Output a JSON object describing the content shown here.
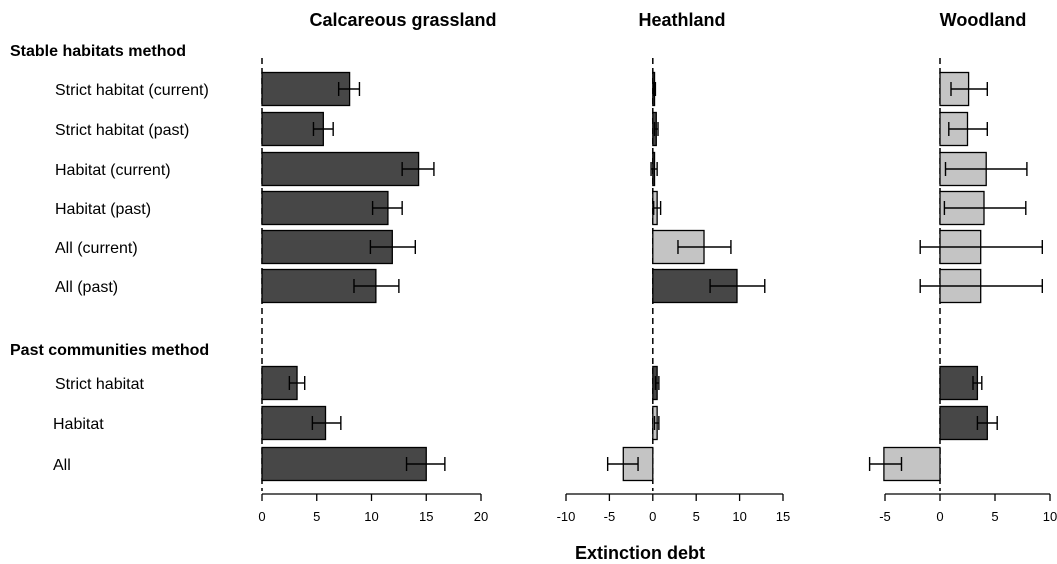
{
  "chart_data": {
    "type": "bar",
    "orientation": "horizontal",
    "xlabel": "Extinction debt",
    "colors": {
      "significant": "#474747",
      "nonsignificant": "#c4c4c4"
    },
    "sections": [
      {
        "title": "Stable habitats method",
        "rows": [
          "Strict habitat (current)",
          "Strict habitat (past)",
          "Habitat (current)",
          "Habitat (past)",
          "All (current)",
          "All (past)"
        ]
      },
      {
        "title": "Past communities method",
        "rows": [
          "Strict habitat",
          "Habitat",
          "All"
        ]
      }
    ],
    "panels": [
      {
        "title": "Calcareous grassland",
        "xlim": [
          0,
          20
        ],
        "ticks": [
          "0",
          "5",
          "10",
          "15",
          "20"
        ],
        "bars": [
          {
            "value": 8.0,
            "lo": 7.0,
            "hi": 8.9,
            "fill": "significant"
          },
          {
            "value": 5.6,
            "lo": 4.7,
            "hi": 6.5,
            "fill": "significant"
          },
          {
            "value": 14.3,
            "lo": 12.8,
            "hi": 15.7,
            "fill": "significant"
          },
          {
            "value": 11.5,
            "lo": 10.1,
            "hi": 12.8,
            "fill": "significant"
          },
          {
            "value": 11.9,
            "lo": 9.9,
            "hi": 14.0,
            "fill": "significant"
          },
          {
            "value": 10.4,
            "lo": 8.4,
            "hi": 12.5,
            "fill": "significant"
          },
          {
            "value": 3.2,
            "lo": 2.5,
            "hi": 3.9,
            "fill": "significant"
          },
          {
            "value": 5.8,
            "lo": 4.6,
            "hi": 7.2,
            "fill": "significant"
          },
          {
            "value": 15.0,
            "lo": 13.2,
            "hi": 16.7,
            "fill": "significant"
          }
        ]
      },
      {
        "title": "Heathland",
        "xlim": [
          -10,
          15
        ],
        "ticks": [
          "-10",
          "-5",
          "0",
          "5",
          "10",
          "15"
        ],
        "bars": [
          {
            "value": 0.2,
            "lo": 0.1,
            "hi": 0.3,
            "fill": "significant"
          },
          {
            "value": 0.4,
            "lo": 0.2,
            "hi": 0.6,
            "fill": "significant"
          },
          {
            "value": 0.2,
            "lo": -0.2,
            "hi": 0.5,
            "fill": "significant"
          },
          {
            "value": 0.5,
            "lo": 0.1,
            "hi": 0.9,
            "fill": "nonsignificant"
          },
          {
            "value": 5.9,
            "lo": 2.9,
            "hi": 9.0,
            "fill": "nonsignificant"
          },
          {
            "value": 9.7,
            "lo": 6.6,
            "hi": 12.9,
            "fill": "significant"
          },
          {
            "value": 0.5,
            "lo": 0.3,
            "hi": 0.7,
            "fill": "significant"
          },
          {
            "value": 0.5,
            "lo": 0.2,
            "hi": 0.7,
            "fill": "nonsignificant"
          },
          {
            "value": -3.4,
            "lo": -5.2,
            "hi": -1.7,
            "fill": "nonsignificant"
          }
        ]
      },
      {
        "title": "Woodland",
        "xlim": [
          -5,
          10
        ],
        "ticks": [
          "-5",
          "0",
          "5",
          "10"
        ],
        "bars": [
          {
            "value": 2.6,
            "lo": 1.0,
            "hi": 4.3,
            "fill": "nonsignificant"
          },
          {
            "value": 2.5,
            "lo": 0.8,
            "hi": 4.3,
            "fill": "nonsignificant"
          },
          {
            "value": 4.2,
            "lo": 0.5,
            "hi": 7.9,
            "fill": "nonsignificant"
          },
          {
            "value": 4.0,
            "lo": 0.4,
            "hi": 7.8,
            "fill": "nonsignificant"
          },
          {
            "value": 3.7,
            "lo": -1.8,
            "hi": 9.3,
            "fill": "nonsignificant"
          },
          {
            "value": 3.7,
            "lo": -1.8,
            "hi": 9.3,
            "fill": "nonsignificant"
          },
          {
            "value": 3.4,
            "lo": 3.0,
            "hi": 3.8,
            "fill": "significant"
          },
          {
            "value": 4.3,
            "lo": 3.4,
            "hi": 5.2,
            "fill": "significant"
          },
          {
            "value": -5.1,
            "lo": -6.4,
            "hi": -3.5,
            "fill": "nonsignificant"
          }
        ]
      }
    ]
  }
}
